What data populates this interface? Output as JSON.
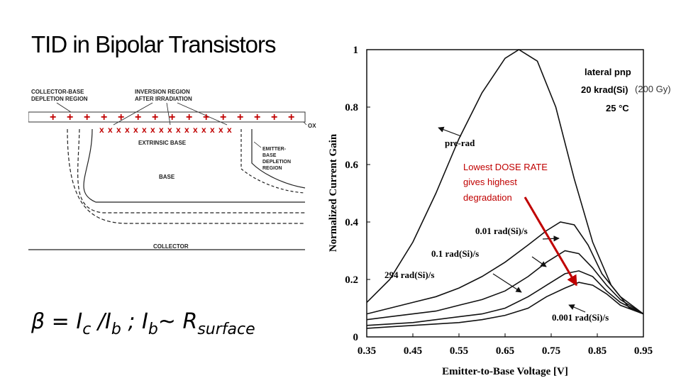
{
  "slide": {
    "title": "TID in Bipolar Transistors",
    "formula": {
      "beta": "β = I",
      "c": "c",
      "slash_i": " /I",
      "b1": "b",
      "sep": " ;  I",
      "b2": "b",
      "tilde": "~ R",
      "surface": "surface"
    }
  },
  "diagram": {
    "collector_base_label": [
      "COLLECTOR-BASE",
      "DEPLETION REGION"
    ],
    "inversion_label": [
      "INVERSION REGION",
      "AFTER IRRADIATION"
    ],
    "extrinsic_base": "EXTRINSIC BASE",
    "emitter_base_label": [
      "EMITTER-",
      "BASE",
      "DEPLETION",
      "REGION"
    ],
    "base": "BASE",
    "collector": "COLLECTOR",
    "oxide": "OX",
    "plus_charge": "+",
    "x_trap": "x"
  },
  "chart_data": {
    "type": "line",
    "xlabel": "Emitter-to-Base Voltage [V]",
    "ylabel": "Normalized Current Gain",
    "xlim": [
      0.35,
      0.95
    ],
    "ylim": [
      0,
      1
    ],
    "x_ticks": [
      "0.35",
      "0.45",
      "0.55",
      "0.65",
      "0.75",
      "0.85",
      "0.95"
    ],
    "y_ticks": [
      "0",
      "0.2",
      "0.4",
      "0.6",
      "0.8",
      "1"
    ],
    "x_tick_values": [
      0.35,
      0.45,
      0.55,
      0.65,
      0.75,
      0.85,
      0.95
    ],
    "y_tick_values": [
      0,
      0.2,
      0.4,
      0.6,
      0.8,
      1
    ],
    "legend_block": [
      "lateral pnp",
      "20 krad(Si)",
      "25 °C"
    ],
    "dose_note": "(200 Gy)",
    "series": [
      {
        "name": "pre-rad",
        "x": [
          0.35,
          0.4,
          0.45,
          0.5,
          0.55,
          0.6,
          0.65,
          0.68,
          0.72,
          0.76,
          0.8,
          0.84,
          0.88,
          0.92,
          0.95
        ],
        "y": [
          0.12,
          0.2,
          0.33,
          0.5,
          0.69,
          0.85,
          0.97,
          1.0,
          0.96,
          0.8,
          0.55,
          0.33,
          0.18,
          0.1,
          0.08
        ]
      },
      {
        "name": "294 rad(Si)/s",
        "x": [
          0.35,
          0.4,
          0.45,
          0.5,
          0.55,
          0.6,
          0.65,
          0.7,
          0.74,
          0.77,
          0.8,
          0.83,
          0.86,
          0.9,
          0.95
        ],
        "y": [
          0.08,
          0.1,
          0.12,
          0.14,
          0.17,
          0.21,
          0.26,
          0.32,
          0.37,
          0.4,
          0.39,
          0.32,
          0.22,
          0.14,
          0.08
        ]
      },
      {
        "name": "0.1 rad(Si)/s",
        "x": [
          0.35,
          0.4,
          0.45,
          0.5,
          0.55,
          0.6,
          0.65,
          0.7,
          0.74,
          0.78,
          0.81,
          0.84,
          0.87,
          0.9,
          0.95
        ],
        "y": [
          0.06,
          0.07,
          0.08,
          0.09,
          0.11,
          0.13,
          0.16,
          0.21,
          0.26,
          0.3,
          0.29,
          0.24,
          0.18,
          0.13,
          0.08
        ]
      },
      {
        "name": "0.01 rad(Si)/s",
        "x": [
          0.35,
          0.4,
          0.45,
          0.5,
          0.55,
          0.6,
          0.65,
          0.7,
          0.74,
          0.78,
          0.81,
          0.84,
          0.87,
          0.9,
          0.95
        ],
        "y": [
          0.04,
          0.045,
          0.05,
          0.06,
          0.07,
          0.08,
          0.1,
          0.14,
          0.18,
          0.22,
          0.23,
          0.21,
          0.16,
          0.12,
          0.08
        ]
      },
      {
        "name": "0.001 rad(Si)/s",
        "x": [
          0.35,
          0.4,
          0.45,
          0.5,
          0.55,
          0.6,
          0.65,
          0.7,
          0.74,
          0.78,
          0.81,
          0.84,
          0.87,
          0.9,
          0.95
        ],
        "y": [
          0.03,
          0.035,
          0.04,
          0.045,
          0.05,
          0.06,
          0.075,
          0.1,
          0.14,
          0.17,
          0.19,
          0.18,
          0.15,
          0.11,
          0.08
        ]
      }
    ],
    "annotation": {
      "text": [
        "Lowest DOSE RATE",
        "gives highest",
        "degradation"
      ],
      "color": "#c00000",
      "arrow_to": {
        "x": 0.805,
        "y": 0.18
      }
    }
  }
}
